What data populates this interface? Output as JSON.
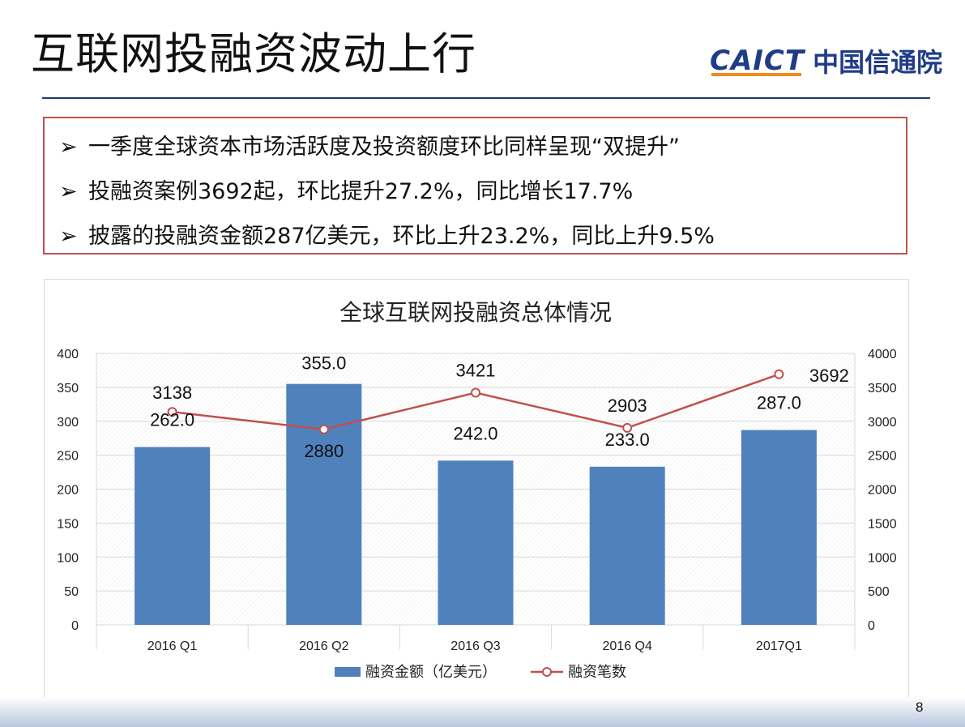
{
  "slide": {
    "title": "互联网投融资波动上行",
    "logo_en": "CAICT",
    "logo_cn": "中国信通院",
    "page_number": "8",
    "bullet_marker": "➢",
    "bullets": [
      "一季度全球资本市场活跃度及投资额度环比同样呈现“双提升”",
      "投融资案例3692起，环比提升27.2%，同比增长17.7%",
      "披露的投融资金额287亿美元，环比上升23.2%，同比上升9.5%"
    ]
  },
  "colors": {
    "bar": "#4f81bd",
    "line": "#c0504d",
    "box_border": "#c0504d",
    "title_rule": "#1f3a70",
    "logo": "#1f3c88"
  },
  "chart_data": {
    "type": "bar+line",
    "title": "全球互联网投融资总体情况",
    "categories": [
      "2016 Q1",
      "2016 Q2",
      "2016 Q3",
      "2016 Q4",
      "2017Q1"
    ],
    "series": [
      {
        "name": "融资金额（亿美元）",
        "type": "bar",
        "axis": "left",
        "values": [
          262.0,
          355.0,
          242.0,
          233.0,
          287.0
        ],
        "labels": [
          "262.0",
          "355.0",
          "242.0",
          "233.0",
          "287.0"
        ]
      },
      {
        "name": "融资笔数",
        "type": "line",
        "axis": "right",
        "values": [
          3138,
          2880,
          3421,
          2903,
          3692
        ],
        "labels": [
          "3138",
          "2880",
          "3421",
          "2903",
          "3692"
        ]
      }
    ],
    "y_left": {
      "min": 0,
      "max": 400,
      "ticks": [
        0,
        50,
        100,
        150,
        200,
        250,
        300,
        350,
        400
      ]
    },
    "y_right": {
      "min": 0,
      "max": 4000,
      "ticks": [
        0,
        500,
        1000,
        1500,
        2000,
        2500,
        3000,
        3500,
        4000
      ]
    },
    "legend_position": "bottom",
    "grid": true
  }
}
